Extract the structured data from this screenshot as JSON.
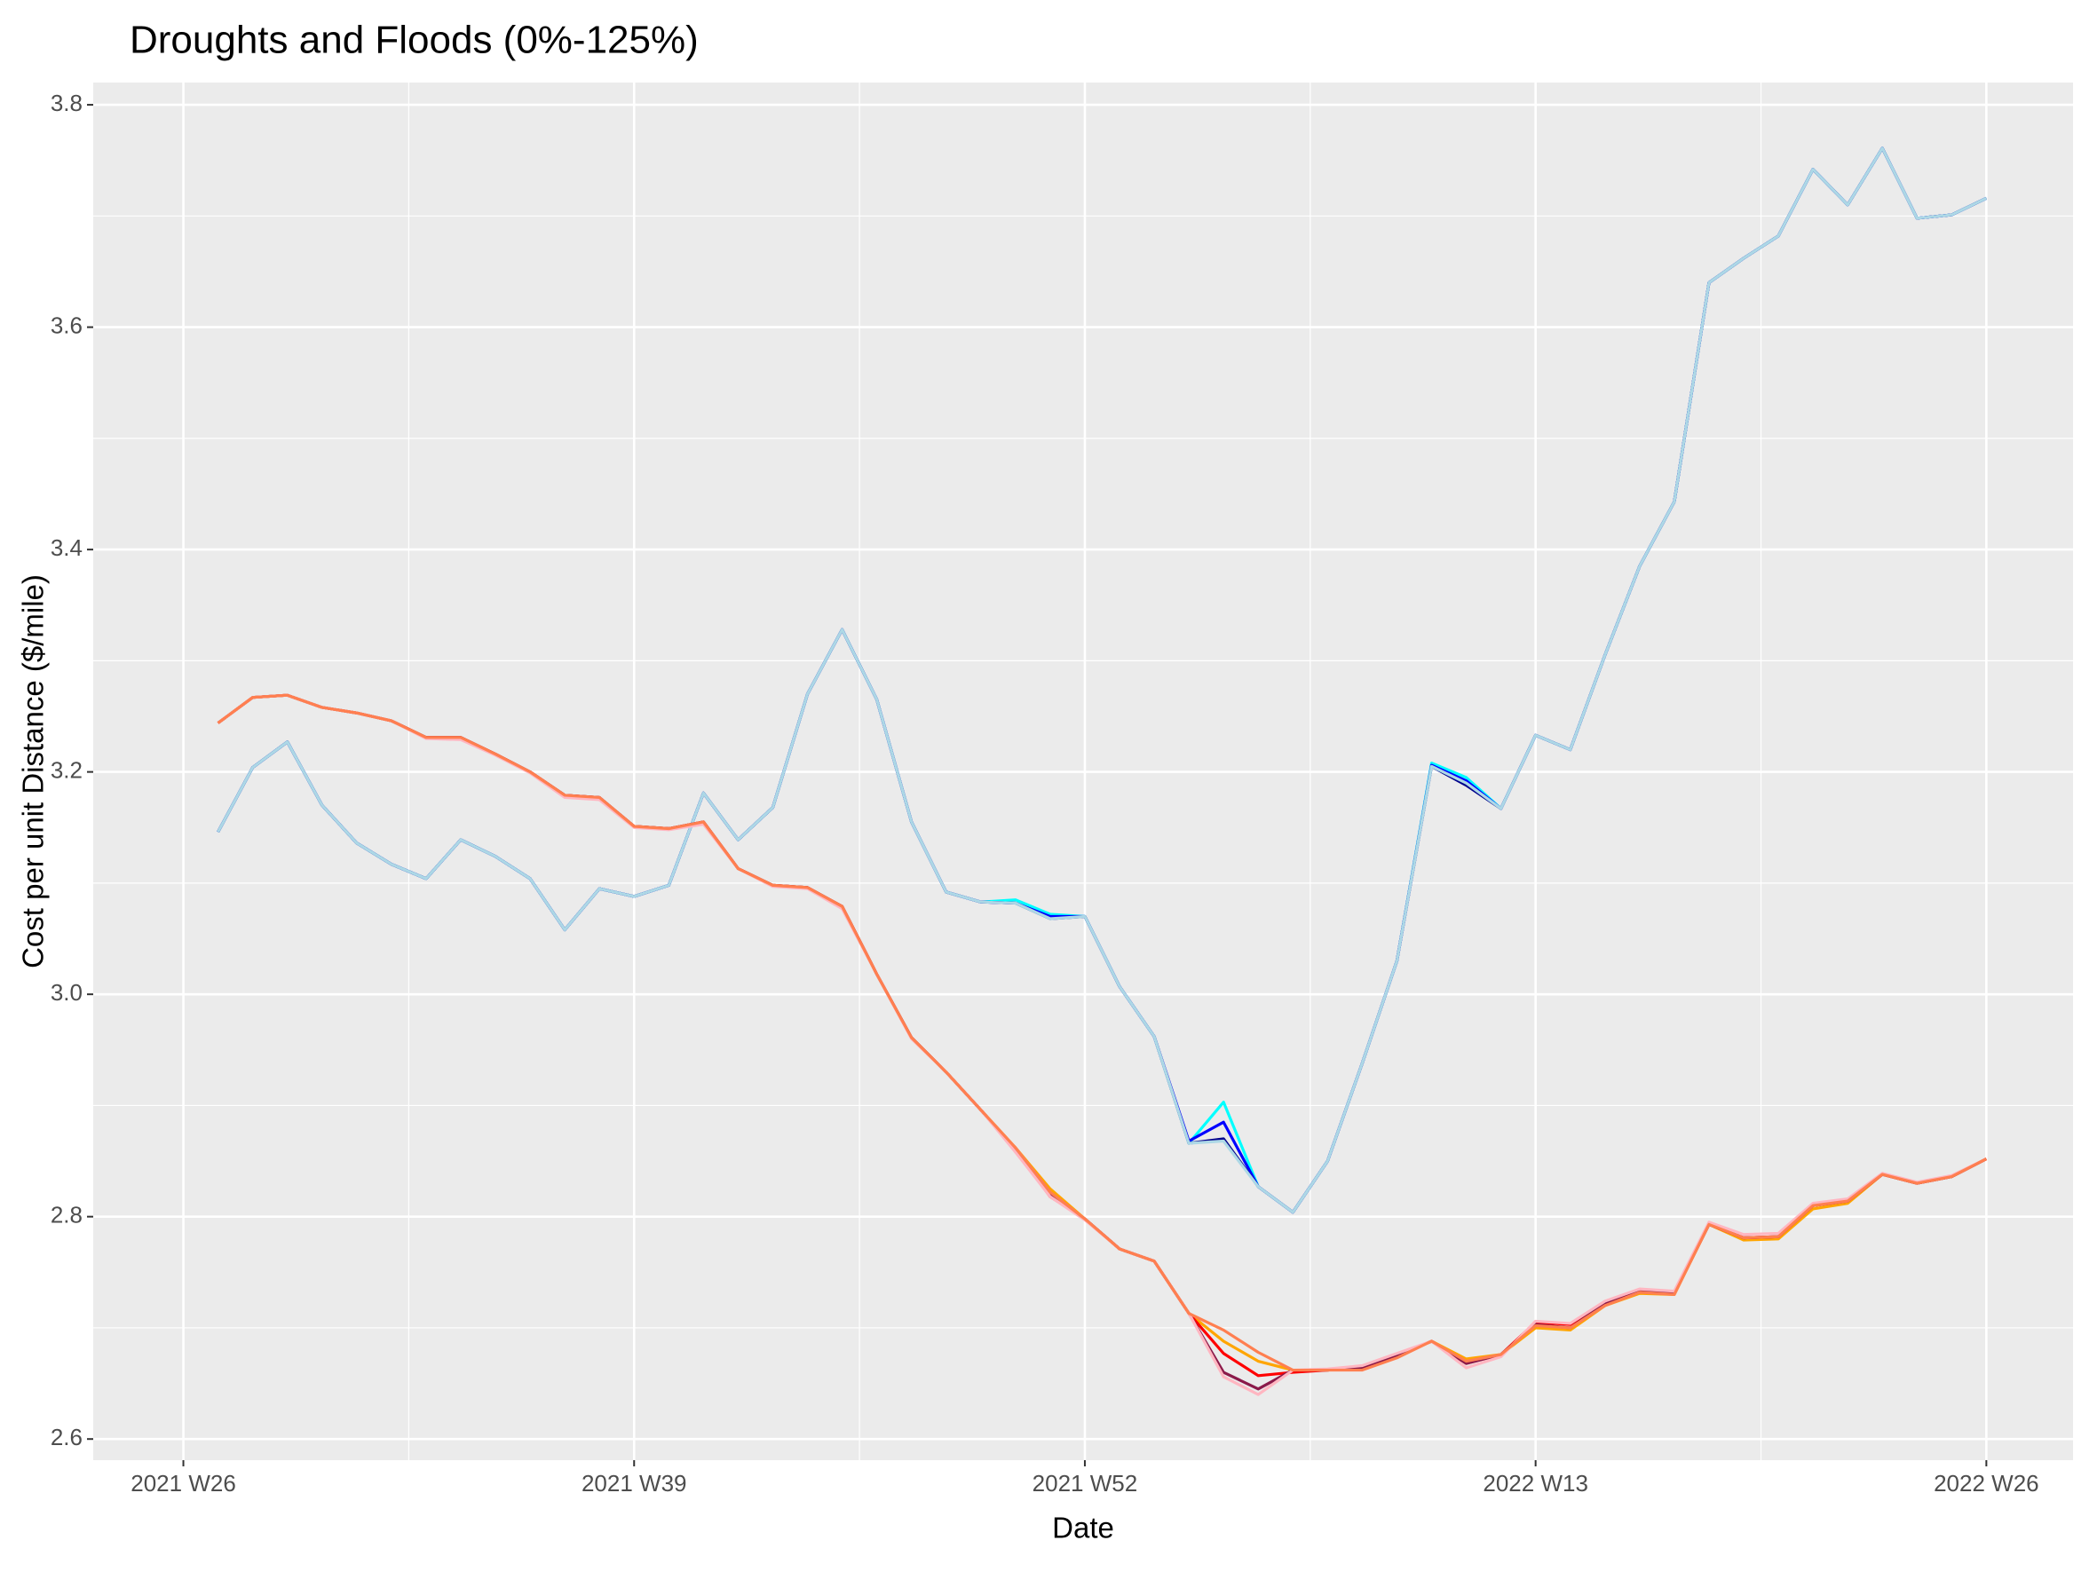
{
  "chart_data": {
    "type": "line",
    "title": "Droughts and Floods (0%-125%)",
    "x_label": "Date",
    "y_label": "Cost per unit Distance ($/mile)",
    "x": [
      27,
      28,
      29,
      30,
      31,
      32,
      33,
      34,
      35,
      36,
      37,
      38,
      39,
      40,
      41,
      42,
      43,
      44,
      45,
      46,
      47,
      48,
      49,
      50,
      51,
      52,
      53,
      54,
      55,
      56,
      57,
      58,
      59,
      60,
      61,
      62,
      63,
      64,
      65,
      66,
      67,
      68,
      69,
      70,
      71,
      72,
      73,
      74,
      75,
      76,
      77,
      78
    ],
    "xlim": [
      23.4,
      80.5
    ],
    "xticks": [
      {
        "value": 26,
        "label": "2021 W26"
      },
      {
        "value": 39,
        "label": "2021 W39"
      },
      {
        "value": 52,
        "label": "2021 W52"
      },
      {
        "value": 65,
        "label": "2022 W13"
      },
      {
        "value": 78,
        "label": "2022 W26"
      }
    ],
    "ylim": [
      2.581,
      3.82
    ],
    "yticks": [
      2.6,
      2.8,
      {
        "value": 3,
        "label": "3.0"
      },
      3.2,
      3.4,
      3.6,
      3.8
    ],
    "grid": true,
    "series": [
      {
        "color": "#00FFFF",
        "values": [
          3.146,
          3.204,
          3.227,
          3.17,
          3.136,
          3.117,
          3.104,
          3.139,
          3.124,
          3.104,
          3.058,
          3.095,
          3.088,
          3.098,
          3.181,
          3.139,
          3.168,
          3.27,
          3.328,
          3.265,
          3.155,
          3.092,
          3.083,
          3.085,
          3.072,
          3.07,
          3.007,
          2.962,
          2.866,
          2.903,
          2.827,
          2.804,
          2.85,
          2.938,
          3.03,
          3.208,
          3.195,
          3.167,
          3.233,
          3.22,
          3.305,
          3.385,
          3.443,
          3.64,
          3.662,
          3.682,
          3.742,
          3.71,
          3.761,
          3.698,
          3.701,
          3.716
        ]
      },
      {
        "color": "#0000FF",
        "values": [
          3.146,
          3.204,
          3.227,
          3.17,
          3.136,
          3.117,
          3.104,
          3.139,
          3.124,
          3.104,
          3.058,
          3.095,
          3.088,
          3.098,
          3.181,
          3.139,
          3.168,
          3.27,
          3.328,
          3.265,
          3.155,
          3.092,
          3.083,
          3.082,
          3.07,
          3.07,
          3.007,
          2.962,
          2.868,
          2.885,
          2.827,
          2.804,
          2.85,
          2.938,
          3.03,
          3.206,
          3.192,
          3.167,
          3.233,
          3.22,
          3.305,
          3.385,
          3.443,
          3.64,
          3.662,
          3.682,
          3.742,
          3.71,
          3.761,
          3.698,
          3.701,
          3.716
        ]
      },
      {
        "color": "#00008B",
        "values": [
          3.146,
          3.204,
          3.227,
          3.17,
          3.136,
          3.117,
          3.104,
          3.139,
          3.124,
          3.104,
          3.058,
          3.095,
          3.088,
          3.098,
          3.181,
          3.139,
          3.168,
          3.27,
          3.328,
          3.265,
          3.155,
          3.092,
          3.083,
          3.082,
          3.068,
          3.07,
          3.007,
          2.962,
          2.866,
          2.87,
          2.827,
          2.804,
          2.85,
          2.938,
          3.03,
          3.205,
          3.188,
          3.167,
          3.233,
          3.22,
          3.305,
          3.385,
          3.443,
          3.64,
          3.662,
          3.682,
          3.742,
          3.71,
          3.761,
          3.698,
          3.701,
          3.716
        ]
      },
      {
        "color": "#ADD8E6",
        "values": [
          3.146,
          3.204,
          3.227,
          3.17,
          3.136,
          3.117,
          3.104,
          3.139,
          3.124,
          3.104,
          3.058,
          3.095,
          3.088,
          3.098,
          3.181,
          3.139,
          3.168,
          3.27,
          3.328,
          3.265,
          3.155,
          3.092,
          3.083,
          3.082,
          3.068,
          3.07,
          3.007,
          2.962,
          2.866,
          2.868,
          2.827,
          2.804,
          2.85,
          2.938,
          3.03,
          3.205,
          3.19,
          3.167,
          3.233,
          3.22,
          3.305,
          3.385,
          3.443,
          3.64,
          3.662,
          3.682,
          3.742,
          3.71,
          3.761,
          3.698,
          3.701,
          3.716
        ]
      },
      {
        "color": "#FFA500",
        "values": [
          3.244,
          3.267,
          3.269,
          3.258,
          3.253,
          3.246,
          3.231,
          3.231,
          3.216,
          3.2,
          3.179,
          3.177,
          3.151,
          3.149,
          3.155,
          3.113,
          3.098,
          3.096,
          3.079,
          3.018,
          2.961,
          2.93,
          2.896,
          2.862,
          2.825,
          2.798,
          2.771,
          2.76,
          2.713,
          2.688,
          2.67,
          2.662,
          2.662,
          2.664,
          2.675,
          2.688,
          2.672,
          2.676,
          2.7,
          2.698,
          2.72,
          2.731,
          2.73,
          2.793,
          2.779,
          2.78,
          2.807,
          2.812,
          2.838,
          2.83,
          2.836,
          2.852
        ]
      },
      {
        "color": "#FF0000",
        "values": [
          3.244,
          3.267,
          3.269,
          3.258,
          3.253,
          3.246,
          3.231,
          3.231,
          3.216,
          3.2,
          3.179,
          3.177,
          3.151,
          3.149,
          3.155,
          3.113,
          3.098,
          3.096,
          3.079,
          3.018,
          2.961,
          2.93,
          2.896,
          2.86,
          2.818,
          2.798,
          2.771,
          2.76,
          2.713,
          2.677,
          2.657,
          2.66,
          2.662,
          2.664,
          2.675,
          2.688,
          2.668,
          2.676,
          2.705,
          2.703,
          2.722,
          2.733,
          2.731,
          2.793,
          2.781,
          2.782,
          2.81,
          2.814,
          2.838,
          2.83,
          2.836,
          2.852
        ]
      },
      {
        "color": "#8B1A4A",
        "values": [
          3.244,
          3.267,
          3.269,
          3.258,
          3.253,
          3.246,
          3.231,
          3.231,
          3.216,
          3.2,
          3.179,
          3.177,
          3.151,
          3.149,
          3.155,
          3.113,
          3.098,
          3.096,
          3.079,
          3.018,
          2.961,
          2.93,
          2.896,
          2.86,
          2.82,
          2.798,
          2.771,
          2.76,
          2.713,
          2.66,
          2.645,
          2.662,
          2.662,
          2.664,
          2.675,
          2.688,
          2.668,
          2.676,
          2.703,
          2.7,
          2.722,
          2.733,
          2.731,
          2.793,
          2.781,
          2.782,
          2.81,
          2.814,
          2.838,
          2.83,
          2.836,
          2.852
        ]
      },
      {
        "color": "#FFB6C1",
        "values": [
          3.244,
          3.267,
          3.269,
          3.258,
          3.253,
          3.246,
          3.23,
          3.229,
          3.215,
          3.199,
          3.177,
          3.175,
          3.15,
          3.148,
          3.153,
          3.113,
          3.097,
          3.095,
          3.077,
          3.018,
          2.96,
          2.93,
          2.896,
          2.858,
          2.818,
          2.797,
          2.771,
          2.76,
          2.713,
          2.656,
          2.64,
          2.662,
          2.663,
          2.666,
          2.677,
          2.688,
          2.664,
          2.674,
          2.706,
          2.704,
          2.724,
          2.735,
          2.733,
          2.795,
          2.784,
          2.785,
          2.812,
          2.816,
          2.839,
          2.831,
          2.837,
          2.852
        ]
      },
      {
        "color": "#FF7F50",
        "values": [
          3.244,
          3.267,
          3.269,
          3.258,
          3.253,
          3.246,
          3.231,
          3.231,
          3.216,
          3.2,
          3.179,
          3.177,
          3.151,
          3.149,
          3.155,
          3.113,
          3.098,
          3.096,
          3.079,
          3.018,
          2.961,
          2.93,
          2.896,
          2.862,
          2.822,
          2.798,
          2.771,
          2.76,
          2.713,
          2.698,
          2.678,
          2.662,
          2.662,
          2.662,
          2.673,
          2.688,
          2.67,
          2.676,
          2.702,
          2.7,
          2.72,
          2.732,
          2.73,
          2.793,
          2.781,
          2.782,
          2.81,
          2.814,
          2.838,
          2.83,
          2.836,
          2.852
        ]
      }
    ]
  }
}
